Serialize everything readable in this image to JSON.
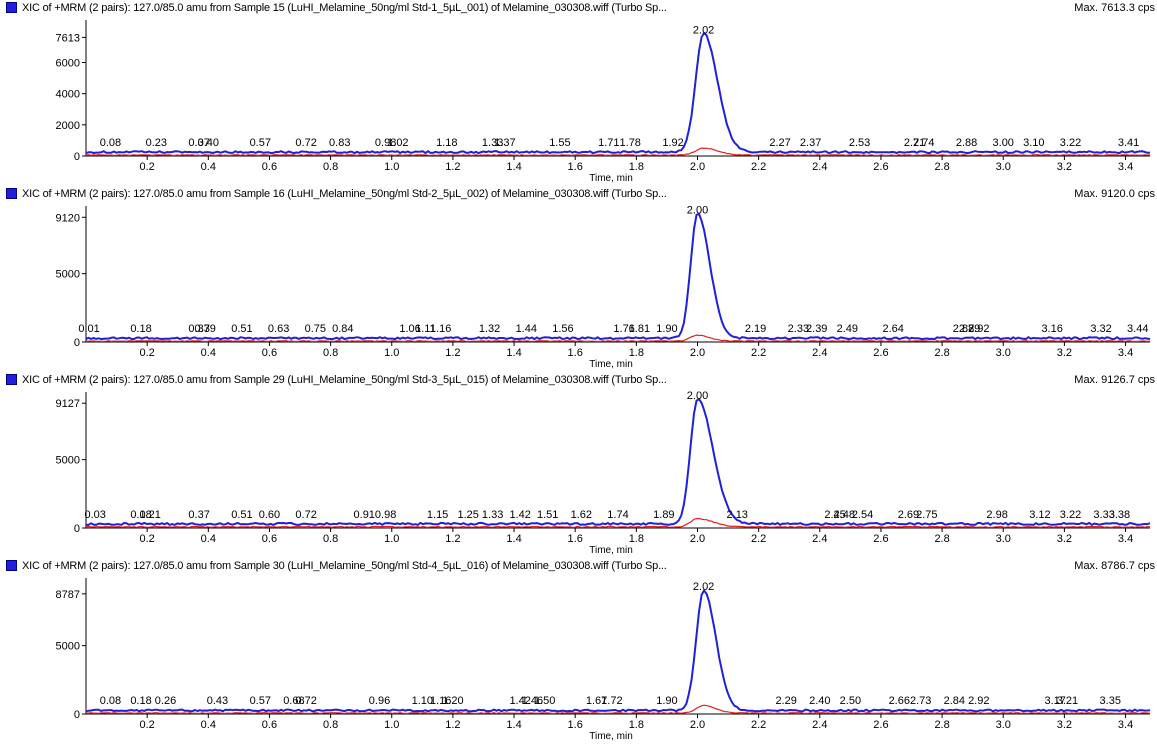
{
  "chart_data": [
    {
      "type": "line",
      "header": "XIC of +MRM (2 pairs): 127.0/85.0 amu from Sample 15 (LuHI_Melamine_50ng/ml Std-1_5µL_001) of Melamine_030308.wiff (Turbo Sp...",
      "max_label": "Max. 7613.3 cps",
      "xlabel": "Time, min",
      "xlim": [
        0.0,
        3.48
      ],
      "ylim": [
        0,
        8600
      ],
      "yticks": [
        "0",
        "2000",
        "4000",
        "6000",
        "7613"
      ],
      "ytick_values": [
        0,
        2000,
        4000,
        6000,
        7613
      ],
      "xticks": [
        "0.2",
        "0.4",
        "0.6",
        "0.8",
        "1.0",
        "1.2",
        "1.4",
        "1.6",
        "1.8",
        "2.0",
        "2.2",
        "2.4",
        "2.6",
        "2.8",
        "3.0",
        "3.2",
        "3.4"
      ],
      "peak": {
        "rt": 2.02,
        "max": 7613.3,
        "sigma": 0.026,
        "tail": 0.045,
        "baseline": 250,
        "secondary_max": 450,
        "secondary_baseline": 60
      },
      "series": [],
      "rt_labels": [
        "0.08",
        "0.23",
        "0.37",
        "0.40",
        "0.57",
        "0.72",
        "0.83",
        "0.98",
        "1.02",
        "1.18",
        "1.33",
        "1.37",
        "1.55",
        "1.71",
        "1.78",
        "1.92",
        "2.02",
        "2.27",
        "2.37",
        "2.53",
        "2.71",
        "2.74",
        "2.88",
        "3.00",
        "3.10",
        "3.22",
        "3.41"
      ],
      "rt_values": [
        0.08,
        0.23,
        0.37,
        0.4,
        0.57,
        0.72,
        0.83,
        0.98,
        1.02,
        1.18,
        1.33,
        1.37,
        1.55,
        1.71,
        1.78,
        1.92,
        2.02,
        2.27,
        2.37,
        2.53,
        2.71,
        2.74,
        2.88,
        3.0,
        3.1,
        3.22,
        3.41
      ]
    },
    {
      "type": "line",
      "header": "XIC of +MRM (2 pairs): 127.0/85.0 amu from Sample 16 (LuHI_Melamine_50ng/ml Std-2_5µL_002) of Melamine_030308.wiff (Turbo Sp...",
      "max_label": "Max. 9120.0 cps",
      "xlabel": "Time, min",
      "xlim": [
        0.0,
        3.48
      ],
      "ylim": [
        0,
        9800
      ],
      "yticks": [
        "0",
        "5000",
        "9120"
      ],
      "ytick_values": [
        0,
        5000,
        9120
      ],
      "xticks": [
        "0.2",
        "0.4",
        "0.6",
        "0.8",
        "1.0",
        "1.2",
        "1.4",
        "1.6",
        "1.8",
        "2.0",
        "2.2",
        "2.4",
        "2.6",
        "2.8",
        "3.0",
        "3.2",
        "3.4"
      ],
      "peak": {
        "rt": 2.0,
        "max": 9120.0,
        "sigma": 0.022,
        "tail": 0.04,
        "baseline": 280,
        "secondary_max": 420,
        "secondary_baseline": 70
      },
      "series": [],
      "rt_labels": [
        "0.01",
        "0.18",
        "0.37",
        "0.39",
        "0.51",
        "0.63",
        "0.75",
        "0.84",
        "1.06",
        "1.11",
        "1.16",
        "1.32",
        "1.44",
        "1.56",
        "1.76",
        "1.81",
        "1.90",
        "2.00",
        "2.19",
        "2.33",
        "2.39",
        "2.49",
        "2.64",
        "2.87",
        "2.89",
        "2.92",
        "3.16",
        "3.32",
        "3.44"
      ],
      "rt_values": [
        0.01,
        0.18,
        0.37,
        0.39,
        0.51,
        0.63,
        0.75,
        0.84,
        1.06,
        1.11,
        1.16,
        1.32,
        1.44,
        1.56,
        1.76,
        1.81,
        1.9,
        2.0,
        2.19,
        2.33,
        2.39,
        2.49,
        2.64,
        2.87,
        2.89,
        2.92,
        3.16,
        3.32,
        3.44
      ]
    },
    {
      "type": "line",
      "header": "XIC of +MRM (2 pairs): 127.0/85.0 amu from Sample 29 (LuHI_Melamine_50ng/ml Std-3_5µL_015) of Melamine_030308.wiff (Turbo Sp...",
      "max_label": "Max. 9126.7 cps",
      "xlabel": "Time, min",
      "xlim": [
        0.0,
        3.48
      ],
      "ylim": [
        0,
        9800
      ],
      "yticks": [
        "0",
        "5000",
        "9127"
      ],
      "ytick_values": [
        0,
        5000,
        9127
      ],
      "xticks": [
        "0.2",
        "0.4",
        "0.6",
        "0.8",
        "1.0",
        "1.2",
        "1.4",
        "1.6",
        "1.8",
        "2.0",
        "2.2",
        "2.4",
        "2.6",
        "2.8",
        "3.0",
        "3.2",
        "3.4"
      ],
      "peak": {
        "rt": 2.0,
        "max": 9126.7,
        "sigma": 0.023,
        "tail": 0.05,
        "baseline": 300,
        "secondary_max": 600,
        "secondary_baseline": 80
      },
      "series": [],
      "rt_labels": [
        "0.03",
        "0.18",
        "0.21",
        "0.37",
        "0.51",
        "0.60",
        "0.72",
        "0.91",
        "0.98",
        "1.15",
        "1.25",
        "1.33",
        "1.42",
        "1.51",
        "1.62",
        "1.74",
        "1.89",
        "2.00",
        "2.13",
        "2.45",
        "2.48",
        "2.54",
        "2.69",
        "2.75",
        "2.98",
        "3.12",
        "3.22",
        "3.33",
        "3.38"
      ],
      "rt_values": [
        0.03,
        0.18,
        0.21,
        0.37,
        0.51,
        0.6,
        0.72,
        0.91,
        0.98,
        1.15,
        1.25,
        1.33,
        1.42,
        1.51,
        1.62,
        1.74,
        1.89,
        2.0,
        2.13,
        2.45,
        2.48,
        2.54,
        2.69,
        2.75,
        2.98,
        3.12,
        3.22,
        3.33,
        3.38
      ]
    },
    {
      "type": "line",
      "header": "XIC of +MRM (2 pairs): 127.0/85.0 amu from Sample 30 (LuHI_Melamine_50ng/ml Std-4_5µL_016) of Melamine_030308.wiff (Turbo Sp...",
      "max_label": "Max. 8786.7 cps",
      "xlabel": "Time, min",
      "xlim": [
        0.0,
        3.48
      ],
      "ylim": [
        0,
        9800
      ],
      "yticks": [
        "0",
        "5000",
        "8787"
      ],
      "ytick_values": [
        0,
        5000,
        8787
      ],
      "xticks": [
        "0.2",
        "0.4",
        "0.6",
        "0.8",
        "1.0",
        "1.2",
        "1.4",
        "1.6",
        "1.8",
        "2.0",
        "2.2",
        "2.4",
        "2.6",
        "2.8",
        "3.0",
        "3.2",
        "3.4"
      ],
      "peak": {
        "rt": 2.02,
        "max": 8786.7,
        "sigma": 0.024,
        "tail": 0.04,
        "baseline": 260,
        "secondary_max": 550,
        "secondary_baseline": 70
      },
      "series": [],
      "rt_labels": [
        "0.08",
        "0.18",
        "0.26",
        "0.43",
        "0.57",
        "0.68",
        "0.72",
        "0.96",
        "1.10",
        "1.16",
        "1.20",
        "1.42",
        "1.46",
        "1.50",
        "1.67",
        "1.72",
        "1.90",
        "2.02",
        "2.29",
        "2.40",
        "2.50",
        "2.66",
        "2.73",
        "2.84",
        "2.92",
        "3.17",
        "3.21",
        "3.35"
      ],
      "rt_values": [
        0.08,
        0.18,
        0.26,
        0.43,
        0.57,
        0.68,
        0.72,
        0.96,
        1.1,
        1.16,
        1.2,
        1.42,
        1.46,
        1.5,
        1.67,
        1.72,
        1.9,
        2.02,
        2.29,
        2.4,
        2.5,
        2.66,
        2.73,
        2.84,
        2.92,
        3.17,
        3.21,
        3.35
      ]
    }
  ],
  "colors": {
    "trace_primary": "#1f1fdc",
    "trace_secondary": "#e0201c",
    "axis": "#000000",
    "text": "#000000"
  }
}
